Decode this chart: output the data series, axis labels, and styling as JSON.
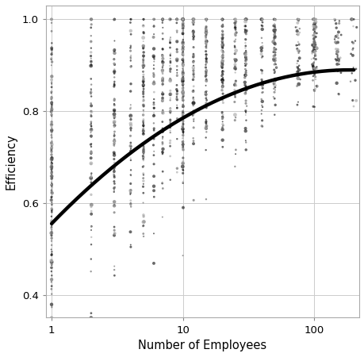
{
  "xlabel": "Number of Employees",
  "ylabel": "Efficiency",
  "xlim_log": [
    0.9,
    220
  ],
  "ylim": [
    0.35,
    1.03
  ],
  "xticks": [
    1,
    10,
    100
  ],
  "xtick_labels": [
    "1",
    "10",
    "100"
  ],
  "yticks": [
    0.4,
    0.6,
    0.8,
    1.0
  ],
  "curve_color": "black",
  "curve_lw": 3.2,
  "dot_color_dark": "#1a1a1a",
  "dot_color_mid": "#666666",
  "dot_color_light": "#aaaaaa",
  "background_color": "#ffffff",
  "grid_color": "#cccccc",
  "seed": 123,
  "curve_x_start": 1.0,
  "curve_x_end": 200.0,
  "curve_params": [
    0.555,
    0.295,
    -0.065
  ]
}
